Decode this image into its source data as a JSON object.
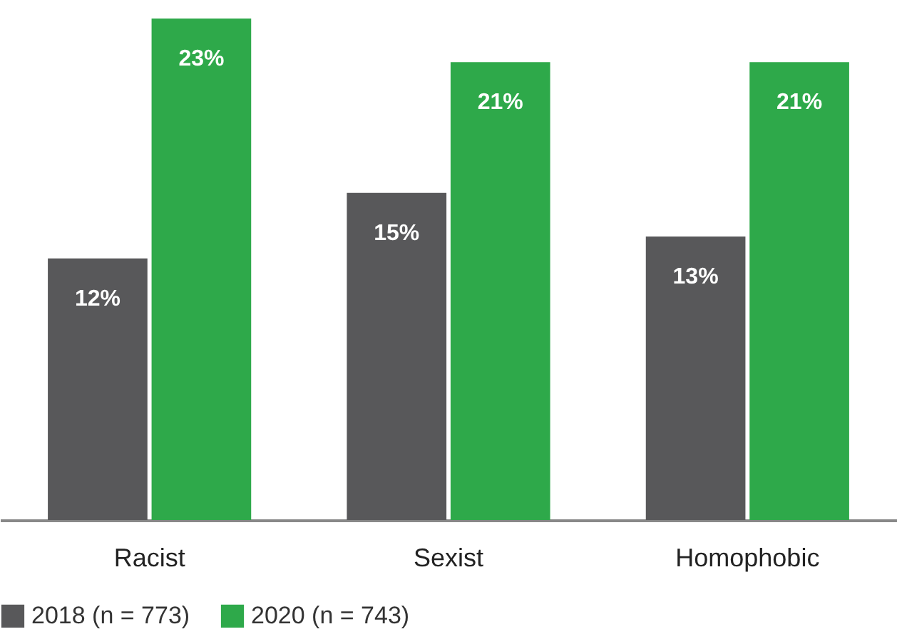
{
  "chart_data": {
    "type": "bar",
    "categories": [
      "Racist",
      "Sexist",
      "Homophobic"
    ],
    "series": [
      {
        "name": "2018 (n = 773)",
        "color": "#58585a",
        "values": [
          12,
          15,
          13
        ],
        "value_labels": [
          "12%",
          "15%",
          "13%"
        ]
      },
      {
        "name": "2020 (n = 743)",
        "color": "#2ea94a",
        "values": [
          23,
          21,
          21
        ],
        "value_labels": [
          "23%",
          "21%",
          "21%"
        ]
      }
    ],
    "legend": "bottom",
    "grid": false
  }
}
